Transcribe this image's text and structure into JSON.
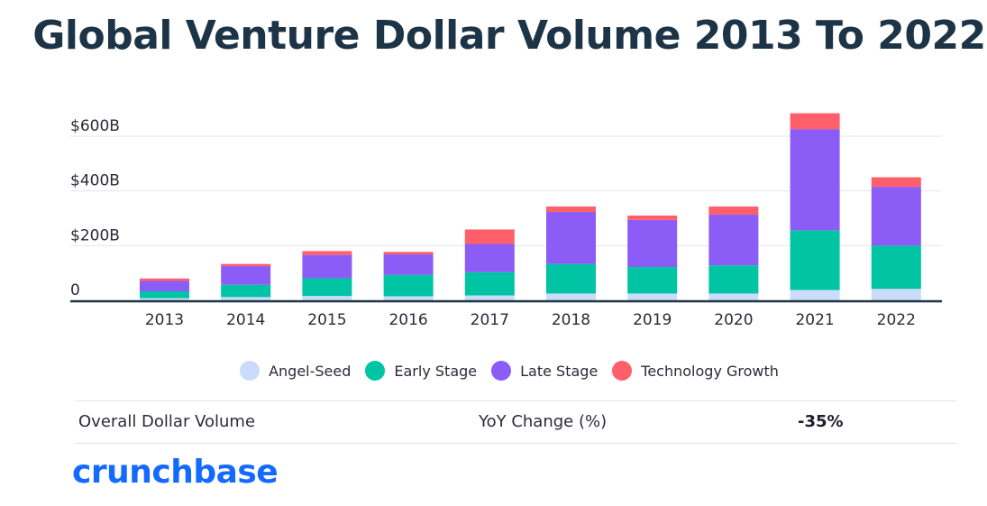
{
  "title": "Global Venture Dollar Volume 2013 To 2022",
  "chart_data": {
    "type": "bar",
    "stacked": true,
    "title": "Global Venture Dollar Volume 2013 To 2022",
    "categories": [
      "2013",
      "2014",
      "2015",
      "2016",
      "2017",
      "2018",
      "2019",
      "2020",
      "2021",
      "2022"
    ],
    "series": [
      {
        "name": "Angel-Seed",
        "color": "#c9dcfa",
        "values": [
          8,
          12,
          16,
          15,
          18,
          25,
          25,
          25,
          38,
          42
        ]
      },
      {
        "name": "Early Stage",
        "color": "#00c4a3",
        "values": [
          25,
          45,
          65,
          78,
          85,
          108,
          97,
          103,
          218,
          158
        ]
      },
      {
        "name": "Late Stage",
        "color": "#8b5cf6",
        "values": [
          38,
          68,
          85,
          75,
          103,
          190,
          172,
          185,
          370,
          215
        ]
      },
      {
        "name": "Technology Growth",
        "color": "#ff5f6a",
        "values": [
          9,
          8,
          14,
          9,
          53,
          20,
          16,
          30,
          58,
          35
        ]
      }
    ],
    "y_tick_labels": [
      "0",
      "$200B",
      "$400B",
      "$600B"
    ],
    "y_tick_values": [
      0,
      200,
      400,
      600
    ],
    "ylim": [
      0,
      700
    ],
    "grid": true,
    "legend_position": "bottom"
  },
  "stats": {
    "label": "Overall Dollar Volume",
    "yoy_label": "YoY Change (%)",
    "yoy_value": "-35%"
  },
  "brand": {
    "logo_text": "crunchbase",
    "logo_color": "#146aff"
  }
}
